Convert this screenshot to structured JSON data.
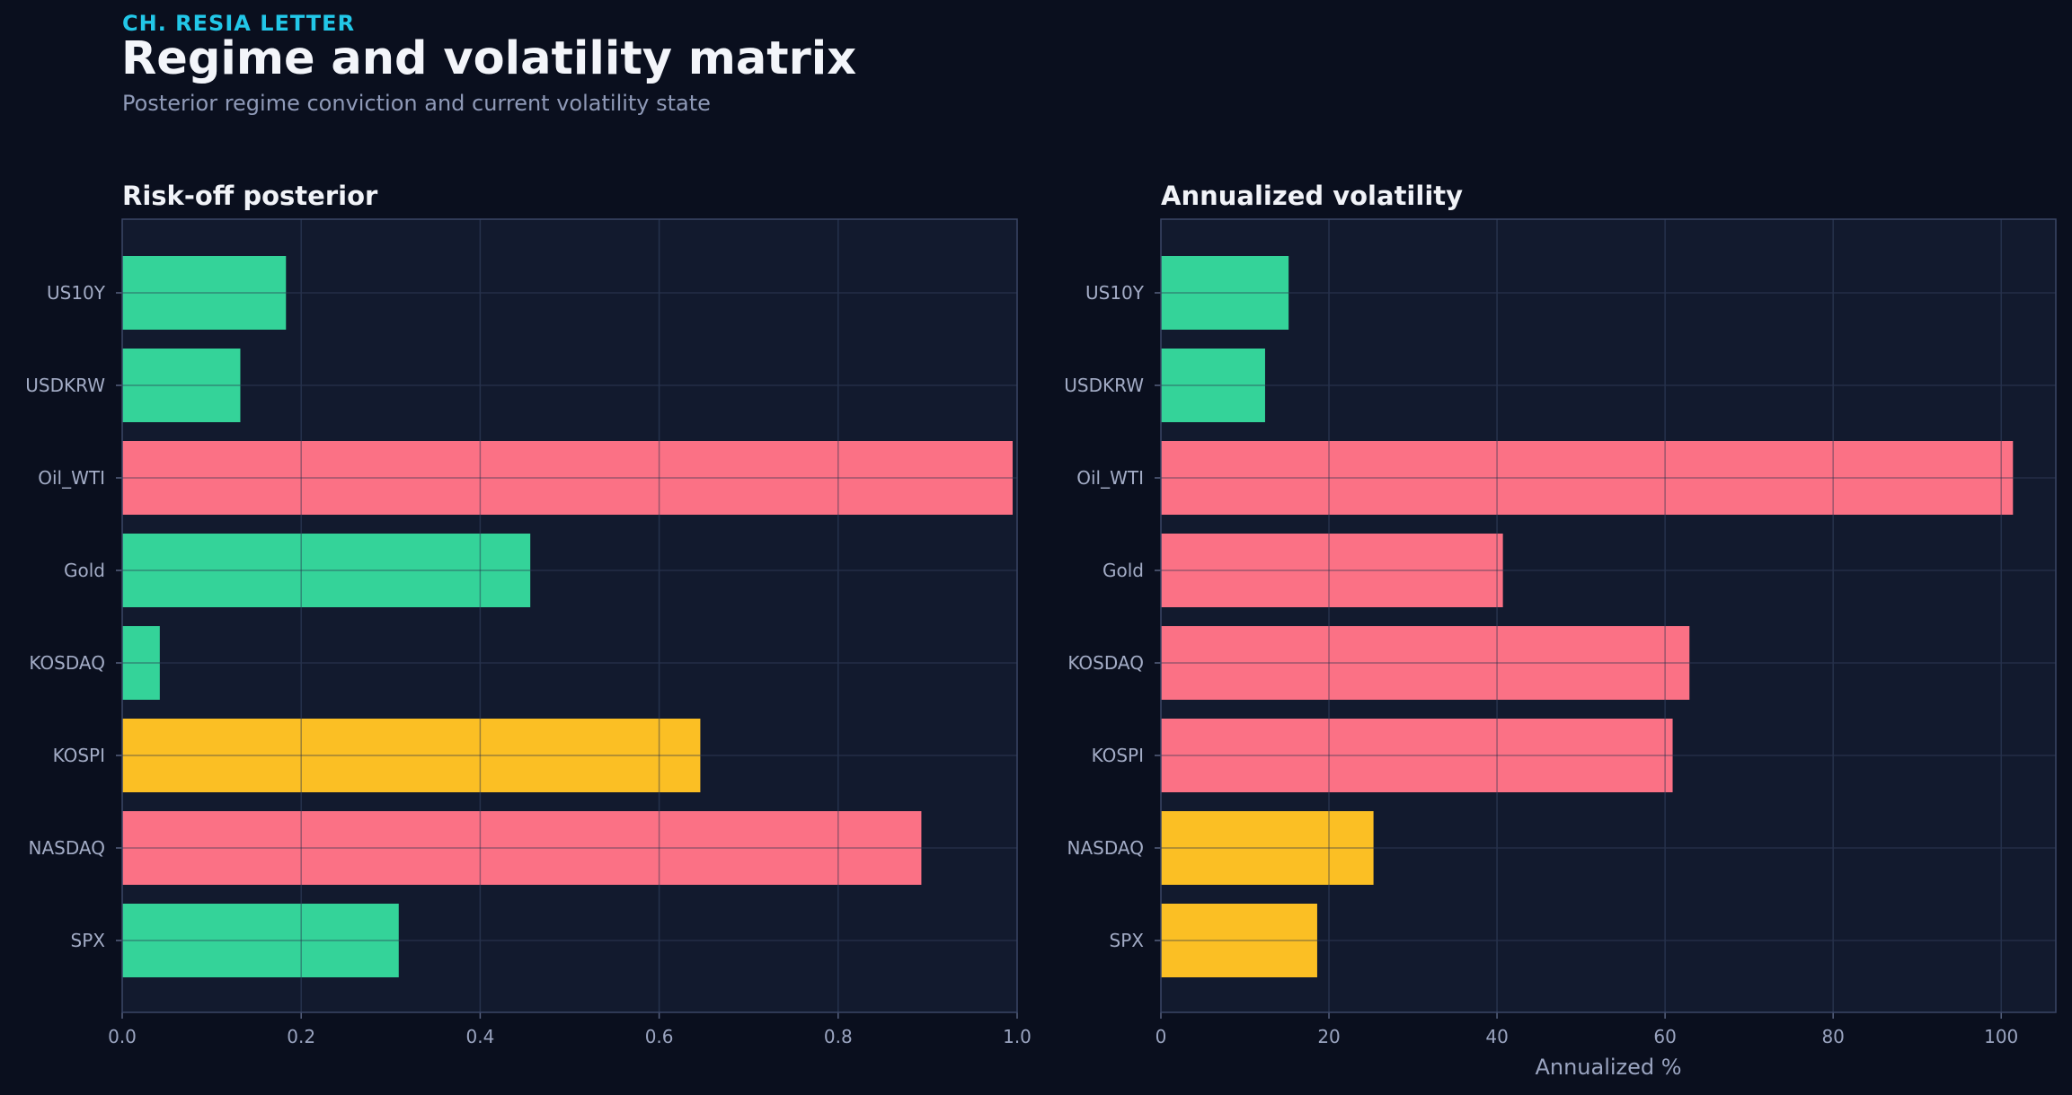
{
  "header": {
    "kicker": "CH. RESIA LETTER",
    "title": "Regime and volatility matrix",
    "subtitle": "Posterior regime conviction and current volatility state"
  },
  "colors": {
    "background": "#0a0f1e",
    "panel": "#121a2e",
    "green": "#34d399",
    "red": "#fb7185",
    "yellow": "#fbbf24",
    "kicker": "#22c7e8"
  },
  "chart_data": [
    {
      "type": "bar",
      "orientation": "horizontal",
      "title": "Risk-off posterior",
      "xlabel": "",
      "ylabel": "",
      "xlim": [
        0,
        1.0
      ],
      "xticks": [
        "0.0",
        "0.2",
        "0.4",
        "0.6",
        "0.8",
        "1.0"
      ],
      "grid": true,
      "categories": [
        "US10Y",
        "USDKRW",
        "Oil_WTI",
        "Gold",
        "KOSDAQ",
        "KOSPI",
        "NASDAQ",
        "SPX"
      ],
      "values": [
        0.183,
        0.132,
        0.995,
        0.456,
        0.042,
        0.646,
        0.893,
        0.309
      ],
      "bar_colors": [
        "green",
        "green",
        "red",
        "green",
        "green",
        "yellow",
        "red",
        "green"
      ]
    },
    {
      "type": "bar",
      "orientation": "horizontal",
      "title": "Annualized volatility",
      "xlabel": "Annualized %",
      "ylabel": "",
      "xlim": [
        0,
        106.5
      ],
      "xticks": [
        "0",
        "20",
        "40",
        "60",
        "80",
        "100"
      ],
      "grid": true,
      "categories": [
        "US10Y",
        "USDKRW",
        "Oil_WTI",
        "Gold",
        "KOSDAQ",
        "KOSPI",
        "NASDAQ",
        "SPX"
      ],
      "values": [
        15.2,
        12.4,
        101.4,
        40.7,
        62.9,
        60.9,
        25.3,
        18.6
      ],
      "bar_colors": [
        "green",
        "green",
        "red",
        "red",
        "red",
        "red",
        "yellow",
        "yellow"
      ]
    }
  ]
}
